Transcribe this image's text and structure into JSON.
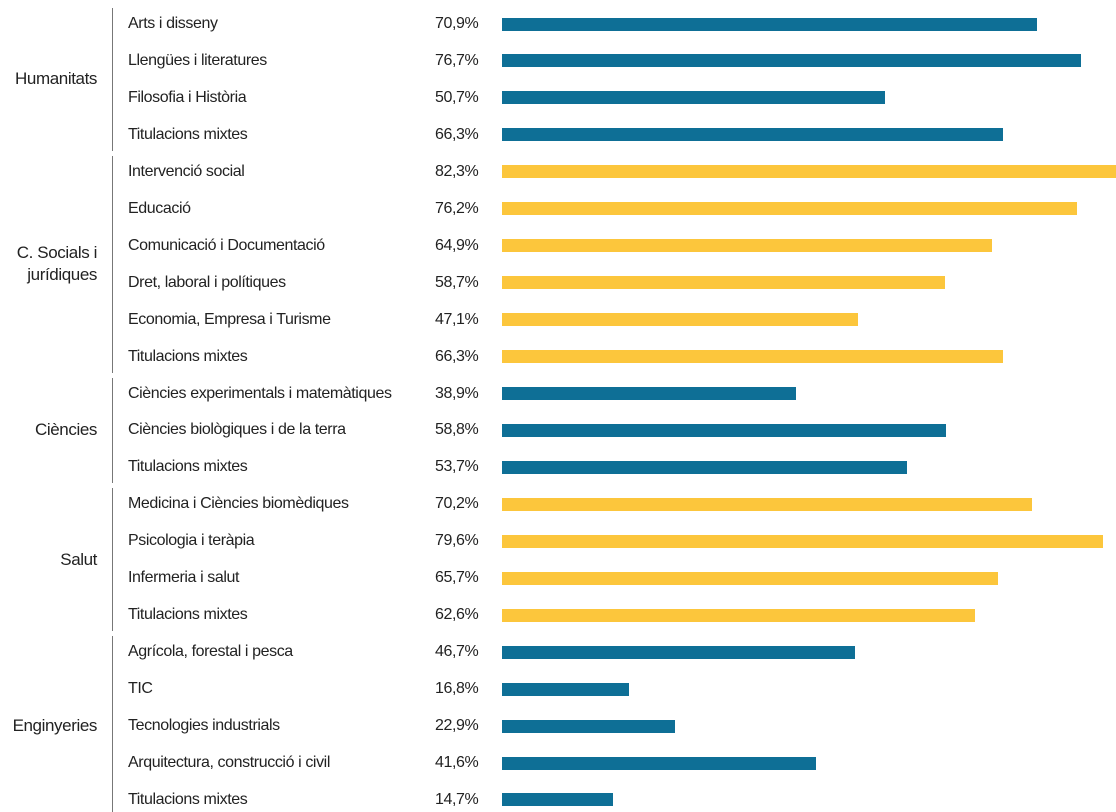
{
  "chart_data": {
    "type": "bar",
    "orientation": "horizontal",
    "groups": [
      {
        "name": "Humanitats",
        "color": "#0e6f96",
        "categories": [
          "Arts i disseny",
          "Llengües i literatures",
          "Filosofia i Història",
          "Titulacions mixtes"
        ],
        "values": [
          70.9,
          76.7,
          50.7,
          66.3
        ],
        "value_labels": [
          "70,9%",
          "76,7%",
          "50,7%",
          "66,3%"
        ]
      },
      {
        "name": "C. Socials i jurídiques",
        "color": "#fcc63c",
        "categories": [
          "Intervenció social",
          "Educació",
          "Comunicació i Documentació",
          "Dret, laboral i polítiques",
          "Economia, Empresa i Turisme",
          "Titulacions mixtes"
        ],
        "values": [
          82.3,
          76.2,
          64.9,
          58.7,
          47.1,
          66.3
        ],
        "value_labels": [
          "82,3%",
          "76,2%",
          "64,9%",
          "58,7%",
          "47,1%",
          "66,3%"
        ]
      },
      {
        "name": "Ciències",
        "color": "#0e6f96",
        "categories": [
          "Ciències experimentals i matemàtiques",
          "Ciències biològiques i de la terra",
          "Titulacions mixtes"
        ],
        "values": [
          38.9,
          58.8,
          53.7
        ],
        "value_labels": [
          "38,9%",
          "58,8%",
          "53,7%"
        ]
      },
      {
        "name": "Salut",
        "color": "#fcc63c",
        "categories": [
          "Medicina i Ciències biomèdiques",
          "Psicologia i teràpia",
          "Infermeria i salut",
          "Titulacions mixtes"
        ],
        "values": [
          70.2,
          79.6,
          65.7,
          62.6
        ],
        "value_labels": [
          "70,2%",
          "79,6%",
          "65,7%",
          "62,6%"
        ]
      },
      {
        "name": "Enginyeries",
        "color": "#0e6f96",
        "categories": [
          "Agrícola, forestal i pesca",
          "TIC",
          "Tecnologies industrials",
          "Arquitectura, construcció i civil",
          "Titulacions mixtes"
        ],
        "values": [
          46.7,
          16.8,
          22.9,
          41.6,
          14.7
        ],
        "value_labels": [
          "46,7%",
          "16,8%",
          "22,9%",
          "41,6%",
          "14,7%"
        ]
      }
    ]
  }
}
